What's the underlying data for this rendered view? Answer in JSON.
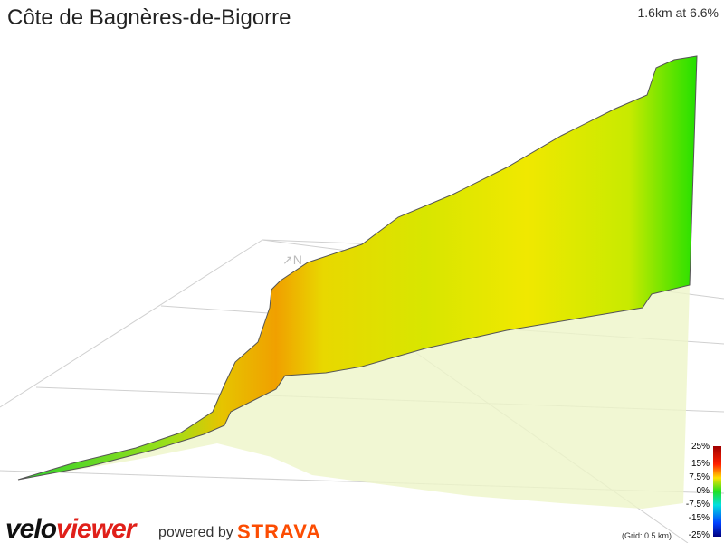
{
  "header": {
    "title": "Côte de Bagnères-de-Bigorre",
    "summary": "1.6km at 6.6%"
  },
  "legend": {
    "labels": [
      "25%",
      "15%",
      "7.5%",
      "0%",
      "-7.5%",
      "-15%",
      "-25%"
    ],
    "note": "(Grid: 0.5 km)"
  },
  "footer": {
    "brand_a": "velo",
    "brand_b": "viewer",
    "powered": "powered by",
    "strava": "STRAVA"
  }
}
